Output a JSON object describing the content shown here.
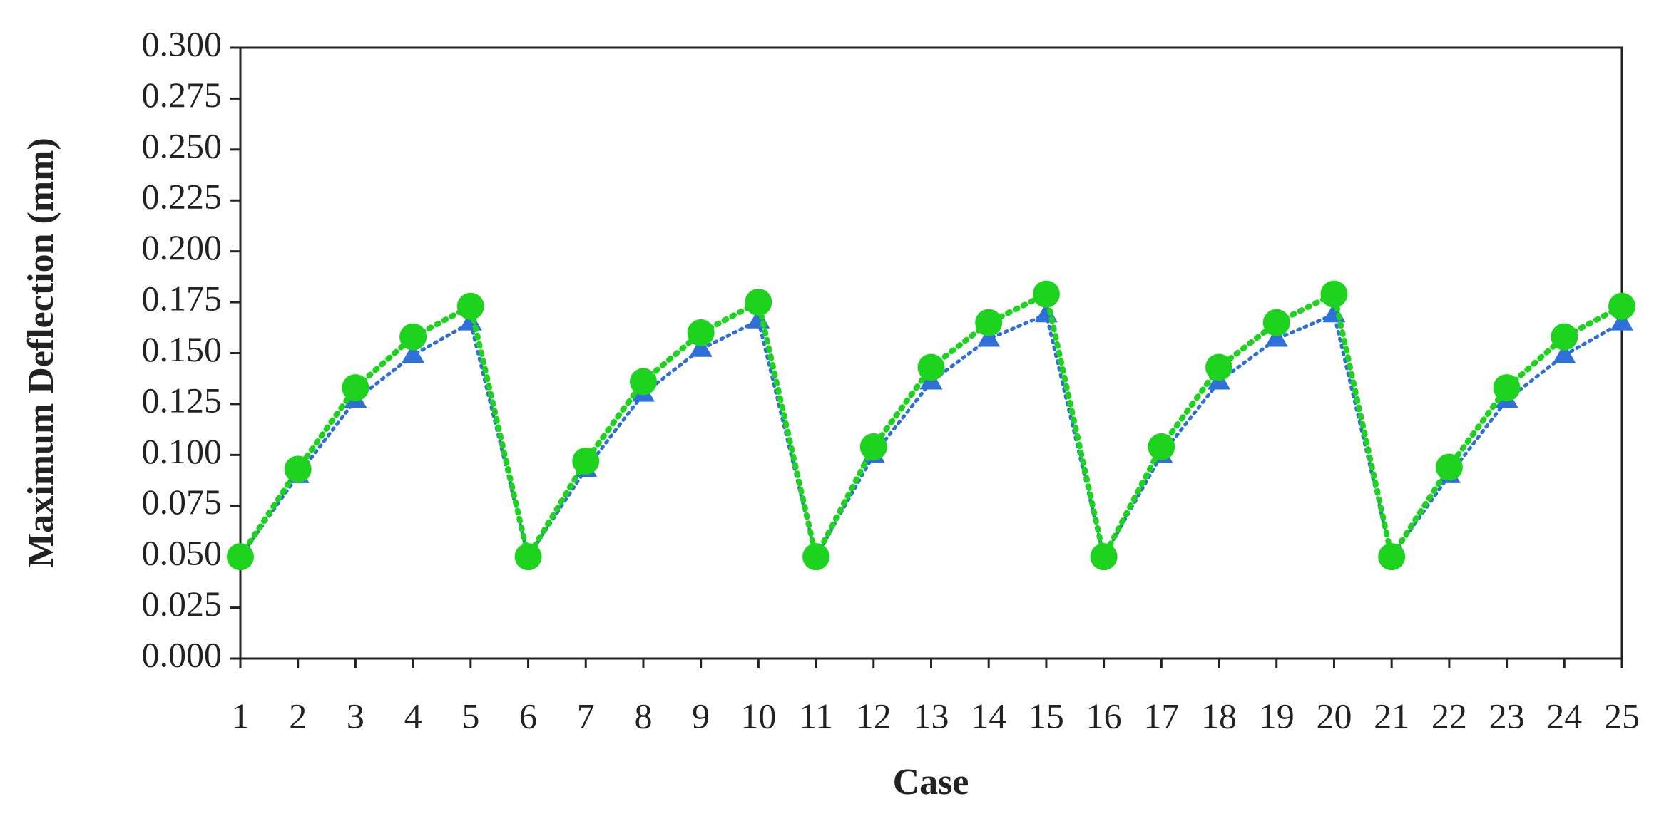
{
  "chart_data": {
    "type": "line",
    "x_label": "Case",
    "y_label": "Maximum Deflection (mm)",
    "x": [
      1,
      2,
      3,
      4,
      5,
      6,
      7,
      8,
      9,
      10,
      11,
      12,
      13,
      14,
      15,
      16,
      17,
      18,
      19,
      20,
      21,
      22,
      23,
      24,
      25
    ],
    "series": [
      {
        "color": "#2e6fd8",
        "marker": "triangle",
        "values": [
          0.05,
          0.09,
          0.127,
          0.149,
          0.165,
          0.05,
          0.093,
          0.13,
          0.152,
          0.166,
          0.05,
          0.1,
          0.136,
          0.157,
          0.169,
          0.05,
          0.1,
          0.136,
          0.157,
          0.169,
          0.05,
          0.09,
          0.127,
          0.149,
          0.165
        ]
      },
      {
        "color": "#1ed31e",
        "marker": "circle",
        "values": [
          0.05,
          0.093,
          0.133,
          0.158,
          0.173,
          0.05,
          0.097,
          0.136,
          0.16,
          0.175,
          0.05,
          0.104,
          0.143,
          0.165,
          0.179,
          0.05,
          0.104,
          0.143,
          0.165,
          0.179,
          0.05,
          0.094,
          0.133,
          0.158,
          0.173
        ]
      }
    ],
    "xlim": [
      1,
      25
    ],
    "xticks": [
      1,
      2,
      3,
      4,
      5,
      6,
      7,
      8,
      9,
      10,
      11,
      12,
      13,
      14,
      15,
      16,
      17,
      18,
      19,
      20,
      21,
      22,
      23,
      24,
      25
    ],
    "ylim": [
      0,
      0.3
    ],
    "yticks": [
      {
        "value": 0,
        "label": "0.000"
      },
      {
        "value": 0.025,
        "label": "0.025"
      },
      {
        "value": 0.05,
        "label": "0.050"
      },
      {
        "value": 0.075,
        "label": "0.075"
      },
      {
        "value": 0.1,
        "label": "0.100"
      },
      {
        "value": 0.125,
        "label": "0.125"
      },
      {
        "value": 0.15,
        "label": "0.150"
      },
      {
        "value": 0.175,
        "label": "0.175"
      },
      {
        "value": 0.2,
        "label": "0.200"
      },
      {
        "value": 0.225,
        "label": "0.225"
      },
      {
        "value": 0.25,
        "label": "0.250"
      },
      {
        "value": 0.275,
        "label": "0.275"
      },
      {
        "value": 0.3,
        "label": "0.300"
      }
    ],
    "grid": false
  }
}
